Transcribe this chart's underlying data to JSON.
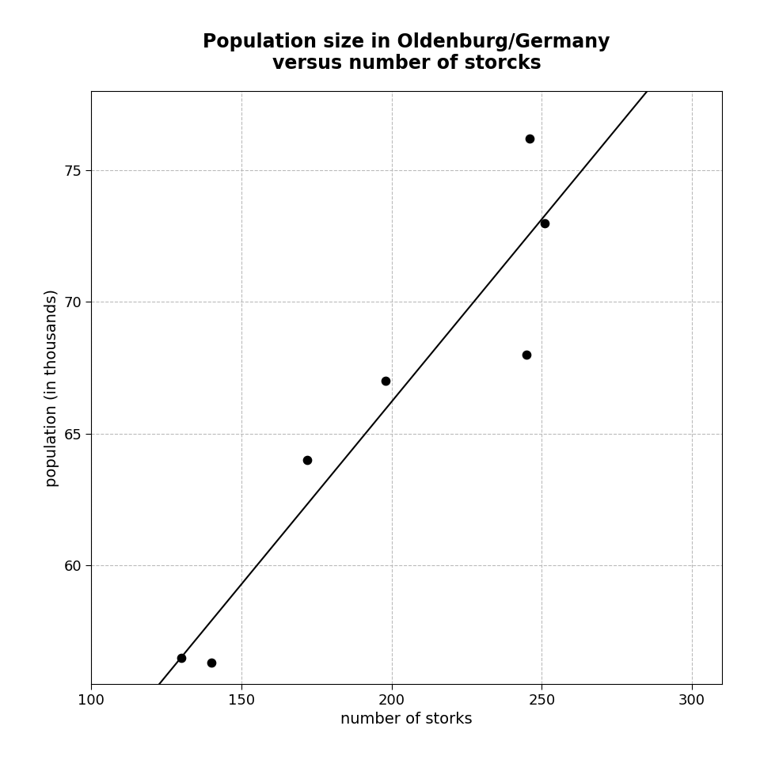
{
  "title": "Population size in Oldenburg/Germany\nversus number of storcks",
  "xlabel": "number of storks",
  "ylabel": "population (in thousands)",
  "x_data": [
    130,
    140,
    172,
    198,
    245,
    246,
    251
  ],
  "y_data": [
    56.5,
    56.3,
    64.0,
    67.0,
    68.0,
    76.2,
    73.0
  ],
  "xlim": [
    100,
    310
  ],
  "ylim": [
    55.5,
    78.0
  ],
  "xticks": [
    100,
    150,
    200,
    250,
    300
  ],
  "yticks": [
    60,
    65,
    70,
    75
  ],
  "background_color": "#ffffff",
  "point_color": "black",
  "line_color": "black",
  "grid_color": "#bbbbbb",
  "title_fontsize": 17,
  "label_fontsize": 14,
  "tick_fontsize": 13
}
